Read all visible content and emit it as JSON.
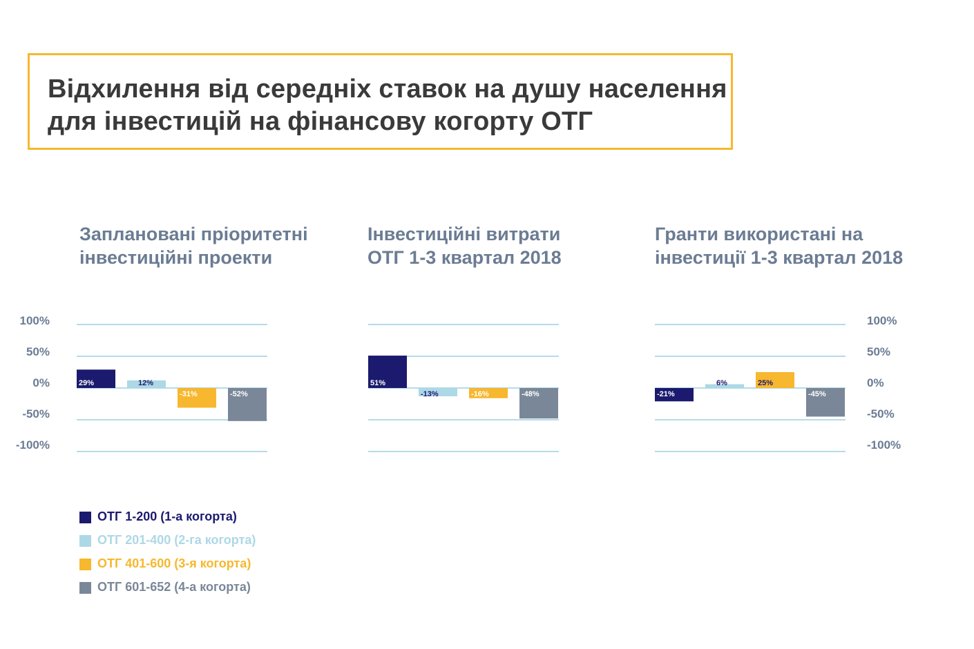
{
  "title": {
    "line1": "Відхилення від середніх ставок на душу населення",
    "line2": "для інвестицій на фінансову когорту ОТГ"
  },
  "y_axis": {
    "tick_labels": [
      "100%",
      "50%",
      "0%",
      "-50%",
      "-100%"
    ]
  },
  "colors": {
    "cohort1": "#1b1a6e",
    "cohort2": "#add8e6",
    "cohort3": "#f7b72e",
    "cohort4": "#7a8798",
    "gridline": "#9ccfe0",
    "title_border": "#f6b82f"
  },
  "legend": [
    {
      "label": "ОТГ 1-200 (1-а когорта)",
      "color": "#1b1a6e"
    },
    {
      "label": "ОТГ 201-400 (2-га когорта)",
      "color": "#add8e6"
    },
    {
      "label": "ОТГ 401-600 (3-я когорта)",
      "color": "#f7b72e"
    },
    {
      "label": "ОТГ 601-652 (4-а когорта)",
      "color": "#7a8798"
    }
  ],
  "chart_data": [
    {
      "type": "bar",
      "title_lines": [
        "Заплановані пріоритетні",
        "інвестиційні проекти"
      ],
      "categories": [
        "ОТГ 1-200 (1-а когорта)",
        "ОТГ 201-400 (2-га когорта)",
        "ОТГ 401-600 (3-я когорта)",
        "ОТГ 601-652 (4-а когорта)"
      ],
      "values": [
        29,
        12,
        -31,
        -52
      ],
      "data_labels": [
        "29%",
        "12%",
        "-31%",
        "-52%"
      ],
      "ylim": [
        -100,
        100
      ],
      "grid": true
    },
    {
      "type": "bar",
      "title_lines": [
        "Інвестиційні витрати",
        "ОТГ 1-3 квартал 2018"
      ],
      "categories": [
        "ОТГ 1-200 (1-а когорта)",
        "ОТГ 201-400 (2-га когорта)",
        "ОТГ 401-600 (3-я когорта)",
        "ОТГ 601-652 (4-а когорта)"
      ],
      "values": [
        51,
        -13,
        -16,
        -48
      ],
      "data_labels": [
        "51%",
        "-13%",
        "-16%",
        "-48%"
      ],
      "ylim": [
        -100,
        100
      ],
      "grid": true
    },
    {
      "type": "bar",
      "title_lines": [
        "Гранти використані на",
        "інвестиції 1-3 квартал 2018"
      ],
      "categories": [
        "ОТГ 1-200 (1-а когорта)",
        "ОТГ 201-400 (2-га когорта)",
        "ОТГ 401-600 (3-я когорта)",
        "ОТГ 601-652 (4-а когорта)"
      ],
      "values": [
        -21,
        6,
        25,
        -45
      ],
      "data_labels": [
        "-21%",
        "6%",
        "25%",
        "-45%"
      ],
      "ylim": [
        -100,
        100
      ],
      "grid": true
    }
  ]
}
